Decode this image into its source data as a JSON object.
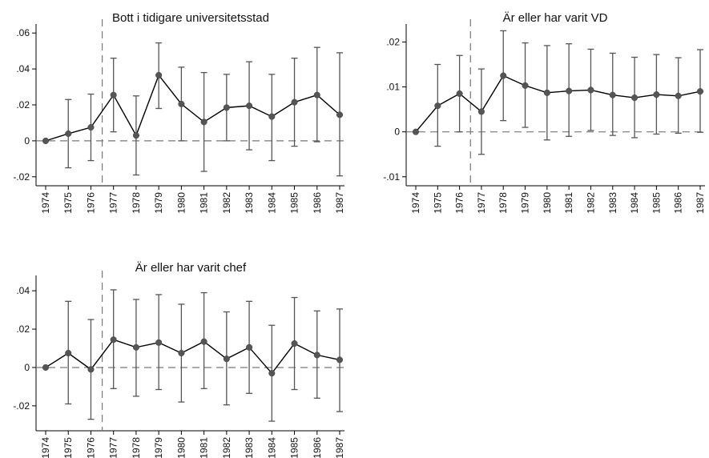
{
  "chart_data": [
    {
      "type": "line",
      "title": "Bott i tidigare universitetsstad",
      "categories": [
        "1974",
        "1975",
        "1976",
        "1977",
        "1978",
        "1979",
        "1980",
        "1981",
        "1982",
        "1983",
        "1984",
        "1985",
        "1986",
        "1987"
      ],
      "values": [
        0,
        0.004,
        0.0075,
        0.0255,
        0.003,
        0.0365,
        0.0205,
        0.0105,
        0.0185,
        0.0195,
        0.0135,
        0.0215,
        0.0255,
        0.0145
      ],
      "ci_low": [
        0,
        -0.015,
        -0.011,
        0.005,
        -0.019,
        0.018,
        0.0,
        -0.017,
        0.0,
        -0.005,
        -0.011,
        -0.003,
        -0.0005,
        -0.0195
      ],
      "ci_high": [
        0,
        0.023,
        0.026,
        0.046,
        0.025,
        0.0545,
        0.041,
        0.038,
        0.037,
        0.044,
        0.037,
        0.046,
        0.052,
        0.049
      ],
      "ylim": [
        -0.025,
        0.065
      ],
      "yticks": [
        -0.02,
        0,
        0.02,
        0.04,
        0.06
      ],
      "ytick_labels": [
        "-.02",
        "0",
        ".02",
        ".04",
        ".06"
      ],
      "reference_x": 2.5
    },
    {
      "type": "line",
      "title": "Är eller har varit VD",
      "categories": [
        "1974",
        "1975",
        "1976",
        "1977",
        "1978",
        "1979",
        "1980",
        "1981",
        "1982",
        "1983",
        "1984",
        "1985",
        "1986",
        "1987"
      ],
      "values": [
        0,
        0.0058,
        0.0085,
        0.0045,
        0.0125,
        0.0103,
        0.0087,
        0.0091,
        0.0093,
        0.0082,
        0.0076,
        0.0083,
        0.008,
        0.009
      ],
      "ci_low": [
        0,
        -0.0032,
        0.0,
        -0.005,
        0.0025,
        0.001,
        -0.0018,
        -0.001,
        0.0003,
        -0.0008,
        -0.0013,
        -0.0005,
        -0.0003,
        -0.0001
      ],
      "ci_high": [
        0,
        0.015,
        0.017,
        0.014,
        0.0225,
        0.0198,
        0.0192,
        0.0196,
        0.0184,
        0.0175,
        0.0166,
        0.0172,
        0.0165,
        0.0183
      ],
      "ylim": [
        -0.012,
        0.024
      ],
      "yticks": [
        -0.01,
        0,
        0.01,
        0.02
      ],
      "ytick_labels": [
        "-.01",
        "0",
        ".01",
        ".02"
      ],
      "reference_x": 2.5
    },
    {
      "type": "line",
      "title": "Är eller har varit chef",
      "categories": [
        "1974",
        "1975",
        "1976",
        "1977",
        "1978",
        "1979",
        "1980",
        "1981",
        "1982",
        "1983",
        "1984",
        "1985",
        "1986",
        "1987"
      ],
      "values": [
        0,
        0.0075,
        -0.001,
        0.0145,
        0.0105,
        0.013,
        0.0075,
        0.0135,
        0.0045,
        0.0105,
        -0.003,
        0.0125,
        0.0065,
        0.004
      ],
      "ci_low": [
        0,
        -0.019,
        -0.027,
        -0.011,
        -0.015,
        -0.0115,
        -0.018,
        -0.011,
        -0.0195,
        -0.0135,
        -0.028,
        -0.0115,
        -0.016,
        -0.023
      ],
      "ci_high": [
        0,
        0.0345,
        0.025,
        0.0405,
        0.0355,
        0.038,
        0.033,
        0.039,
        0.029,
        0.0345,
        0.022,
        0.0365,
        0.0295,
        0.0305
      ],
      "ylim": [
        -0.033,
        0.048
      ],
      "yticks": [
        -0.02,
        0,
        0.02,
        0.04
      ],
      "ytick_labels": [
        "-.02",
        "0",
        ".02",
        ".04"
      ],
      "reference_x": 2.5
    }
  ]
}
